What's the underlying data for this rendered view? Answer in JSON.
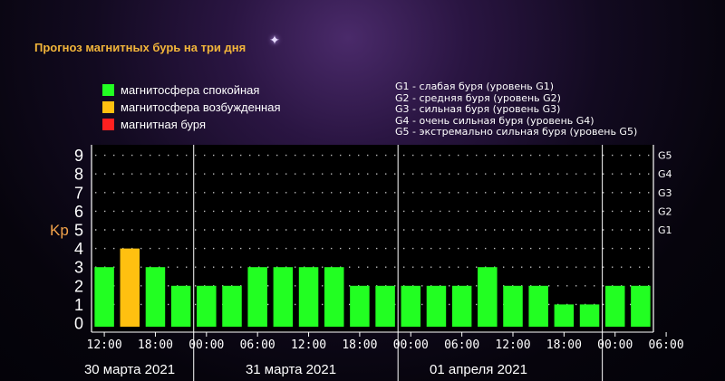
{
  "title": "Прогноз магнитных бурь на три дня",
  "legend": [
    {
      "label": "магнитосфера спокойная",
      "color": "#22ff22"
    },
    {
      "label": "магнитосфера возбужденная",
      "color": "#ffc010"
    },
    {
      "label": "магнитная буря",
      "color": "#ff2020"
    }
  ],
  "g_levels": [
    "G1 - слабая буря (уровень G1)",
    "G2 - средняя буря (уровень G2)",
    "G3 - сильная буря (уровень G3)",
    "G4 - очень сильная буря (уровень G4)",
    "G5 - экстремально сильная буря (уровень G5)"
  ],
  "chart_data": {
    "type": "bar",
    "ylabel": "Kp",
    "ylim": [
      0,
      9
    ],
    "yticks": [
      "0",
      "1",
      "2",
      "3",
      "4",
      "5",
      "6",
      "7",
      "8",
      "9"
    ],
    "right_ticks": [
      {
        "label": "G1",
        "value": 5
      },
      {
        "label": "G2",
        "value": 6
      },
      {
        "label": "G3",
        "value": 7
      },
      {
        "label": "G4",
        "value": 8
      },
      {
        "label": "G5",
        "value": 9
      }
    ],
    "x_tick_labels": [
      "12:00",
      "18:00",
      "00:00",
      "06:00",
      "12:00",
      "18:00",
      "00:00",
      "06:00",
      "12:00",
      "18:00",
      "00:00",
      "06:00"
    ],
    "day_labels": [
      "30 марта 2021",
      "31 марта 2021",
      "01 апреля 2021"
    ],
    "values": [
      3,
      4,
      3,
      2,
      2,
      2,
      3,
      3,
      3,
      3,
      2,
      2,
      2,
      2,
      2,
      3,
      2,
      2,
      1,
      1,
      2,
      2
    ],
    "colors": [
      "#22ff22",
      "#ffc010",
      "#22ff22",
      "#22ff22",
      "#22ff22",
      "#22ff22",
      "#22ff22",
      "#22ff22",
      "#22ff22",
      "#22ff22",
      "#22ff22",
      "#22ff22",
      "#22ff22",
      "#22ff22",
      "#22ff22",
      "#22ff22",
      "#22ff22",
      "#22ff22",
      "#22ff22",
      "#22ff22",
      "#22ff22",
      "#22ff22"
    ],
    "grid": "dotted",
    "background": "#000000"
  }
}
